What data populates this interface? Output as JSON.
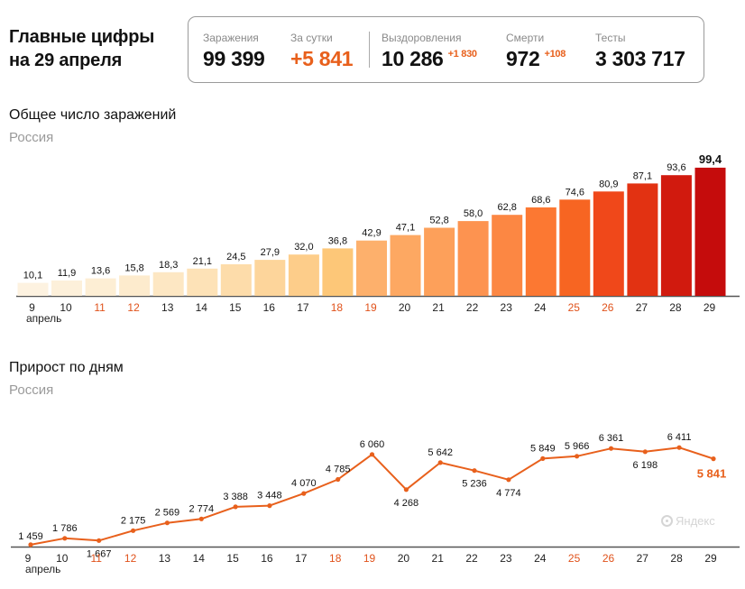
{
  "header": {
    "title_line1": "Главные цифры",
    "title_line2": "на 29 апреля"
  },
  "stats": {
    "infections": {
      "label": "Заражения",
      "value": "99 399"
    },
    "daily": {
      "label": "За сутки",
      "value": "+5 841"
    },
    "recovered": {
      "label": "Выздоровления",
      "value": "10 286",
      "delta": "+1 830"
    },
    "deaths": {
      "label": "Смерти",
      "value": "972",
      "delta": "+108"
    },
    "tests": {
      "label": "Тесты",
      "value": "3 303 717"
    }
  },
  "colors": {
    "accent": "#e8601c",
    "weekend": "#e0521b",
    "axis": "#555555",
    "muted": "#9a9a9a"
  },
  "chart_data": [
    {
      "type": "bar",
      "title": "Общее число заражений",
      "subtitle": "Россия",
      "unit_note": "thousands of cases",
      "categories": [
        "9",
        "10",
        "11",
        "12",
        "13",
        "14",
        "15",
        "16",
        "17",
        "18",
        "19",
        "20",
        "21",
        "22",
        "23",
        "24",
        "25",
        "26",
        "27",
        "28",
        "29"
      ],
      "month_label": "апрель",
      "weekend_categories": [
        "11",
        "12",
        "18",
        "19",
        "25",
        "26"
      ],
      "values": [
        10.1,
        11.9,
        13.6,
        15.8,
        18.3,
        21.1,
        24.5,
        27.9,
        32.0,
        36.8,
        42.9,
        47.1,
        52.8,
        58.0,
        62.8,
        68.6,
        74.6,
        80.9,
        87.1,
        93.6,
        99.4
      ],
      "value_labels": [
        "10,1",
        "11,9",
        "13,6",
        "15,8",
        "18,3",
        "21,1",
        "24,5",
        "27,9",
        "32,0",
        "36,8",
        "42,9",
        "47,1",
        "52,8",
        "58,0",
        "62,8",
        "68,6",
        "74,6",
        "80,9",
        "87,1",
        "93,6",
        "99,4"
      ],
      "bar_colors": [
        "#fdf2e0",
        "#fdf0da",
        "#fdeed4",
        "#fdebcd",
        "#fde7c3",
        "#fde2b7",
        "#fddcaa",
        "#fdd59b",
        "#fdcd8a",
        "#fdc778",
        "#fdb06c",
        "#fda862",
        "#fda05a",
        "#fd9350",
        "#fc8743",
        "#fc7832",
        "#f76522",
        "#f0481a",
        "#e23212",
        "#d11a0e",
        "#c50c0c"
      ],
      "ylim": [
        0,
        110
      ]
    },
    {
      "type": "line",
      "title": "Прирост по дням",
      "subtitle": "Россия",
      "categories": [
        "9",
        "10",
        "11",
        "12",
        "13",
        "14",
        "15",
        "16",
        "17",
        "18",
        "19",
        "20",
        "21",
        "22",
        "23",
        "24",
        "25",
        "26",
        "27",
        "28",
        "29"
      ],
      "month_label": "апрель",
      "weekend_categories": [
        "11",
        "12",
        "18",
        "19",
        "25",
        "26"
      ],
      "values": [
        1459,
        1786,
        1667,
        2175,
        2569,
        2774,
        3388,
        3448,
        4070,
        4785,
        6060,
        4268,
        5642,
        5236,
        4774,
        5849,
        5966,
        6361,
        6198,
        6411,
        5841
      ],
      "value_labels": [
        "1 459",
        "1 786",
        "1 667",
        "2 175",
        "2 569",
        "2 774",
        "3 388",
        "3 448",
        "4 070",
        "4 785",
        "6 060",
        "4 268",
        "5 642",
        "5 236",
        "4 774",
        "5 849",
        "5 966",
        "6 361",
        "6 198",
        "6 411",
        "5 841"
      ],
      "label_positions": [
        "above",
        "above",
        "below",
        "above",
        "above",
        "above",
        "above",
        "above",
        "above",
        "above",
        "above",
        "below",
        "above",
        "below",
        "below",
        "above",
        "above",
        "above",
        "below",
        "above",
        "last"
      ],
      "color": "#e8601c",
      "ylim": [
        0,
        7500
      ]
    }
  ],
  "watermark": "Яндекс"
}
